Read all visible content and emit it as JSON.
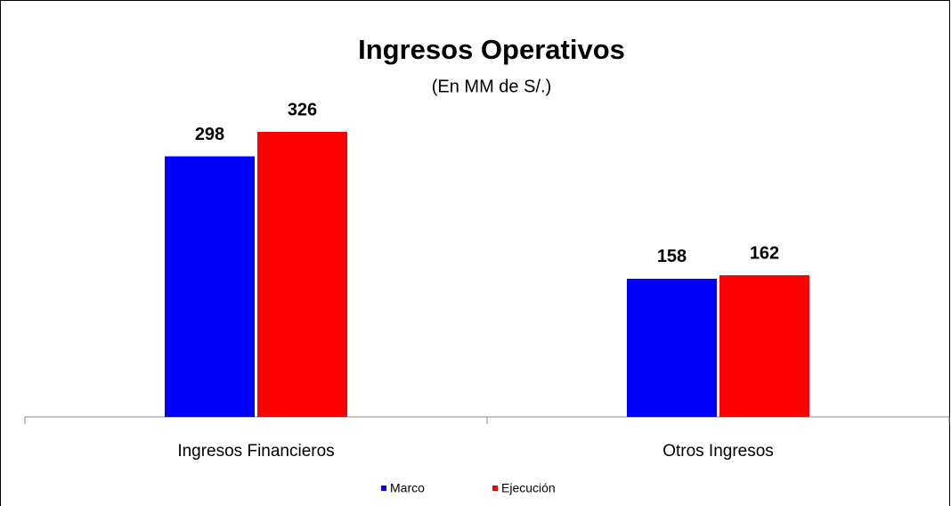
{
  "chart_data": {
    "type": "bar",
    "title": "Ingresos Operativos",
    "subtitle": "(En MM de S/.)",
    "categories": [
      "Ingresos Financieros",
      "Otros Ingresos"
    ],
    "series": [
      {
        "name": "Marco",
        "color": "#0000ff",
        "values": [
          298,
          158
        ]
      },
      {
        "name": "Ejecución",
        "color": "#ff0000",
        "values": [
          326,
          162
        ]
      }
    ],
    "legend": "bottom"
  }
}
